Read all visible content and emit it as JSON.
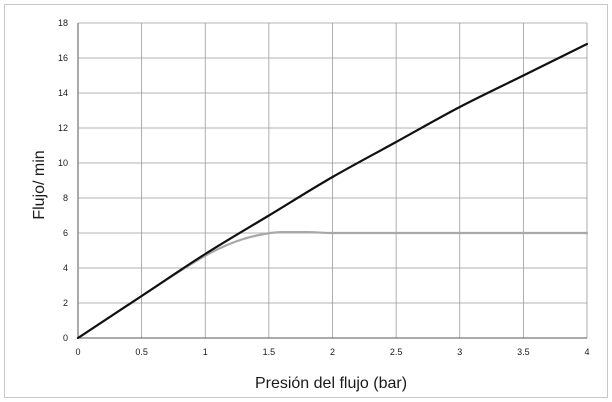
{
  "chart_data": {
    "type": "line",
    "title": "",
    "xlabel": "Presión del flujo (bar)",
    "ylabel": "Flujo/ min",
    "xlim": [
      0,
      4
    ],
    "ylim": [
      0,
      18
    ],
    "x_ticks": [
      "0",
      "0.5",
      "1",
      "1.5",
      "2",
      "2.5",
      "3",
      "3.5",
      "4"
    ],
    "y_ticks": [
      "0",
      "2",
      "4",
      "6",
      "8",
      "10",
      "12",
      "14",
      "16",
      "18"
    ],
    "grid": true,
    "legend": "none",
    "series": [
      {
        "color": "#111111",
        "x": [
          0,
          0.5,
          1,
          1.5,
          2,
          2.5,
          3,
          3.5,
          4
        ],
        "y": [
          0,
          2.4,
          4.8,
          7.0,
          9.2,
          11.2,
          13.2,
          15.0,
          16.8
        ]
      },
      {
        "color": "#a8a8a8",
        "x": [
          0,
          0.5,
          1,
          1.2,
          1.4,
          1.6,
          1.8,
          2,
          2.5,
          3,
          3.5,
          4
        ],
        "y": [
          0,
          2.4,
          4.7,
          5.4,
          5.85,
          6.05,
          6.05,
          6.0,
          6.0,
          6.0,
          6.0,
          6.0
        ]
      }
    ]
  }
}
